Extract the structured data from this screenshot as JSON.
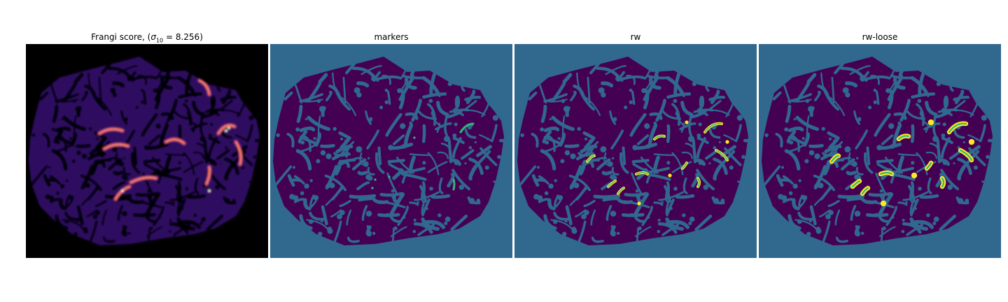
{
  "panels": [
    {
      "title_prefix": "Frangi score, (",
      "title_sigma": "σ",
      "title_sub": "10",
      "title_suffix": " = 8.256)",
      "colormap": "magma"
    },
    {
      "title": "markers",
      "colormap": "viridis"
    },
    {
      "title": "rw",
      "colormap": "viridis"
    },
    {
      "title": "rw-loose",
      "colormap": "viridis"
    }
  ],
  "colors": {
    "background_black": "#000000",
    "viridis_low": "#440154",
    "viridis_mid": "#31688e",
    "viridis_teal": "#35b779",
    "viridis_high": "#fde725",
    "magma_dark": "#2d1160",
    "magma_mid": "#b73779",
    "magma_bright": "#fcfdbf"
  }
}
